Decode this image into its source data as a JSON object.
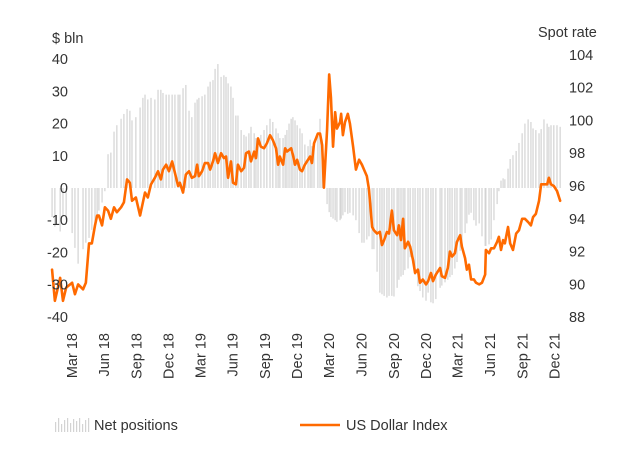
{
  "chart_data": {
    "type": "bar+line",
    "left_axis_unit": "$ bln",
    "right_axis_unit": "Spot rate",
    "left_ticks": [
      40,
      30,
      20,
      10,
      0,
      -10,
      -20,
      -30,
      -40
    ],
    "right_ticks": [
      104,
      102,
      100,
      98,
      96,
      94,
      92,
      90,
      88
    ],
    "ylim_left": [
      -40,
      40
    ],
    "ylim_right": [
      88,
      104
    ],
    "grid": false,
    "legend_position": "bottom",
    "x_tick_labels": [
      {
        "label": "Mar 18",
        "date": "2018-03-01"
      },
      {
        "label": "Jun 18",
        "date": "2018-06-01"
      },
      {
        "label": "Sep 18",
        "date": "2018-09-01"
      },
      {
        "label": "Dec 18",
        "date": "2018-12-01"
      },
      {
        "label": "Mar 19",
        "date": "2019-03-01"
      },
      {
        "label": "Jun 19",
        "date": "2019-06-01"
      },
      {
        "label": "Sep 19",
        "date": "2019-09-01"
      },
      {
        "label": "Dec 19",
        "date": "2019-12-01"
      },
      {
        "label": "Mar 20",
        "date": "2020-03-01"
      },
      {
        "label": "Jun 20",
        "date": "2020-06-01"
      },
      {
        "label": "Sep 20",
        "date": "2020-09-01"
      },
      {
        "label": "Dec 20",
        "date": "2020-12-01"
      },
      {
        "label": "Mar 21",
        "date": "2021-03-01"
      },
      {
        "label": "Jun 21",
        "date": "2021-06-01"
      },
      {
        "label": "Sep 21",
        "date": "2021-09-01"
      },
      {
        "label": "Dec 21",
        "date": "2021-12-01"
      }
    ],
    "dates": [
      "2018-01-04",
      "2018-01-12",
      "2018-01-27",
      "2018-02-04",
      "2018-02-13",
      "2018-03-02",
      "2018-03-10",
      "2018-03-19",
      "2018-04-02",
      "2018-04-10",
      "2018-04-19",
      "2018-04-27",
      "2018-05-06",
      "2018-05-12",
      "2018-05-17",
      "2018-05-26",
      "2018-06-03",
      "2018-06-12",
      "2018-06-20",
      "2018-06-29",
      "2018-07-07",
      "2018-07-19",
      "2018-07-27",
      "2018-08-05",
      "2018-08-13",
      "2018-08-19",
      "2018-08-30",
      "2018-09-11",
      "2018-09-19",
      "2018-09-25",
      "2018-10-03",
      "2018-10-12",
      "2018-10-23",
      "2018-11-01",
      "2018-11-09",
      "2018-11-15",
      "2018-11-24",
      "2018-12-02",
      "2018-12-11",
      "2018-12-19",
      "2018-12-28",
      "2019-01-02",
      "2019-01-11",
      "2019-01-19",
      "2019-01-28",
      "2019-02-05",
      "2019-02-14",
      "2019-02-20",
      "2019-02-25",
      "2019-03-06",
      "2019-03-14",
      "2019-03-23",
      "2019-03-29",
      "2019-04-06",
      "2019-04-12",
      "2019-04-20",
      "2019-04-29",
      "2019-05-07",
      "2019-05-13",
      "2019-05-19",
      "2019-05-27",
      "2019-06-02",
      "2019-06-10",
      "2019-06-16",
      "2019-06-25",
      "2019-07-03",
      "2019-07-09",
      "2019-07-17",
      "2019-07-23",
      "2019-08-01",
      "2019-08-06",
      "2019-08-12",
      "2019-08-20",
      "2019-08-29",
      "2019-09-06",
      "2019-09-15",
      "2019-09-23",
      "2019-10-02",
      "2019-10-08",
      "2019-10-13",
      "2019-10-22",
      "2019-10-28",
      "2019-11-02",
      "2019-11-08",
      "2019-11-14",
      "2019-11-19",
      "2019-11-25",
      "2019-12-01",
      "2019-12-09",
      "2019-12-15",
      "2019-12-23",
      "2020-01-01",
      "2020-01-07",
      "2020-01-12",
      "2020-01-18",
      "2020-01-29",
      "2020-02-04",
      "2020-02-10",
      "2020-02-15",
      "2020-02-24",
      "2020-03-01",
      "2020-03-06",
      "2020-03-12",
      "2020-03-18",
      "2020-03-23",
      "2020-04-01",
      "2020-04-04",
      "2020-04-09",
      "2020-04-15",
      "2020-04-23",
      "2020-04-29",
      "2020-05-08",
      "2020-05-16",
      "2020-05-25",
      "2020-06-02",
      "2020-06-08",
      "2020-06-16",
      "2020-06-22",
      "2020-07-01",
      "2020-07-06",
      "2020-07-15",
      "2020-07-23",
      "2020-07-29",
      "2020-08-04",
      "2020-08-12",
      "2020-08-18",
      "2020-08-26",
      "2020-09-01",
      "2020-09-10",
      "2020-09-15",
      "2020-09-21",
      "2020-09-27",
      "2020-10-02",
      "2020-10-11",
      "2020-10-17",
      "2020-10-25",
      "2020-10-31",
      "2020-11-08",
      "2020-11-14",
      "2020-11-22",
      "2020-12-01",
      "2020-12-07",
      "2020-12-15",
      "2020-12-21",
      "2020-12-29",
      "2021-01-10",
      "2021-01-15",
      "2021-01-24",
      "2021-02-01",
      "2021-02-07",
      "2021-02-13",
      "2021-02-21",
      "2021-02-27",
      "2021-03-08",
      "2021-03-13",
      "2021-03-22",
      "2021-03-27",
      "2021-04-02",
      "2021-04-08",
      "2021-04-16",
      "2021-04-22",
      "2021-05-01",
      "2021-05-09",
      "2021-05-18",
      "2021-05-20",
      "2021-05-29",
      "2021-06-04",
      "2021-06-12",
      "2021-06-21",
      "2021-06-26",
      "2021-07-02",
      "2021-07-08",
      "2021-07-13",
      "2021-07-22",
      "2021-07-28",
      "2021-08-05",
      "2021-08-14",
      "2021-08-22",
      "2021-08-31",
      "2021-09-08",
      "2021-09-17",
      "2021-09-25",
      "2021-10-01",
      "2021-10-09",
      "2021-10-18",
      "2021-10-24",
      "2021-11-01",
      "2021-11-10",
      "2021-11-15",
      "2021-11-21",
      "2021-11-29",
      "2021-12-08",
      "2021-12-17"
    ],
    "series": [
      {
        "name": "Net positions",
        "type": "bar",
        "axis": "left",
        "color": "#d3d3d3",
        "values": [
          -9,
          -12,
          -13.5,
          -9,
          -10,
          -14,
          -18.6,
          -23.5,
          -19,
          -17,
          -15.5,
          -13,
          -11,
          -8.5,
          -7,
          -4.5,
          -1,
          10.5,
          11,
          17.5,
          19.5,
          21.5,
          23,
          24.5,
          24,
          21,
          22,
          25,
          28,
          29,
          27.5,
          28,
          27.5,
          30.5,
          30.5,
          29.5,
          29,
          29,
          29,
          29,
          29,
          29,
          31,
          32,
          24,
          22,
          26.5,
          27.5,
          28,
          28.5,
          29,
          31.5,
          33,
          33.5,
          37,
          38.5,
          34.5,
          35,
          34.5,
          32.5,
          31.5,
          28,
          22.5,
          22.5,
          18,
          16.5,
          16,
          17,
          19,
          17,
          15.5,
          15.3,
          16.5,
          18,
          19.5,
          21.5,
          20.5,
          18.5,
          17,
          15.5,
          15.5,
          16.5,
          18,
          20,
          21.5,
          22,
          21,
          19.5,
          18.5,
          17,
          13.5,
          13,
          15,
          13,
          12.5,
          17,
          21.5,
          15,
          5,
          -5,
          -7.5,
          -9,
          -9.5,
          -10,
          -10.5,
          -10,
          -9.5,
          -8.5,
          -7.5,
          -8,
          -7.7,
          -8.5,
          -10,
          -14,
          -17,
          -17,
          -16,
          -15,
          -19,
          -19,
          -26,
          -32.5,
          -33,
          -33.5,
          -34,
          -33.5,
          -33.5,
          -33.7,
          -31,
          -28.5,
          -27.5,
          -27,
          -25.5,
          -25,
          -21.5,
          -23.5,
          -27,
          -30.5,
          -32,
          -34,
          -35,
          -32.5,
          -35.5,
          -35.8,
          -34.5,
          -31,
          -30.3,
          -29.3,
          -28.5,
          -27.7,
          -27,
          -25,
          -23,
          -19.5,
          -17,
          -14,
          -11,
          -8.3,
          -7.7,
          -10,
          -11.7,
          -11,
          -15,
          -18,
          -18,
          -17.5,
          -16,
          -10,
          -5,
          -1,
          2.3,
          3,
          2.7,
          6,
          9,
          10.2,
          11.5,
          14,
          17,
          20,
          21.3,
          20.5,
          18.5,
          18,
          17,
          18.3,
          21.3,
          20,
          19,
          19.5,
          19.5,
          19.5,
          19
        ]
      },
      {
        "name": "US Dollar Index",
        "type": "line",
        "axis": "right",
        "color": "#ff6a00",
        "values": [
          90.9,
          89.0,
          90.4,
          89.0,
          89.8,
          90.1,
          89.4,
          90.0,
          89.7,
          90.1,
          92.5,
          92.5,
          93.6,
          94.2,
          94.2,
          93.6,
          94.7,
          94.5,
          94.0,
          94.7,
          94.4,
          94.7,
          95.0,
          96.4,
          96.2,
          95.1,
          95.3,
          94.2,
          95.0,
          95.6,
          95.3,
          96.1,
          96.5,
          96.9,
          96.4,
          97.0,
          97.3,
          96.9,
          97.5,
          96.8,
          96.0,
          96.2,
          95.6,
          96.7,
          96.9,
          96.5,
          96.6,
          97.3,
          96.6,
          96.9,
          97.4,
          97.4,
          97.0,
          97.5,
          98.0,
          97.4,
          98.0,
          97.7,
          97.8,
          96.5,
          97.5,
          96.2,
          96.1,
          97.3,
          96.9,
          97.1,
          98.0,
          98.1,
          97.5,
          98.1,
          97.7,
          98.9,
          98.4,
          98.3,
          98.6,
          99.1,
          98.8,
          98.3,
          97.3,
          97.8,
          97.3,
          98.3,
          98.1,
          98.2,
          98.3,
          97.9,
          97.3,
          97.6,
          97.0,
          96.9,
          97.3,
          97.6,
          97.8,
          97.4,
          98.6,
          99.2,
          99.2,
          98.5,
          95.9,
          99.4,
          102.8,
          101.4,
          98.4,
          100.5,
          99.5,
          99.9,
          100.4,
          99.1,
          99.9,
          100.4,
          99.8,
          98.4,
          97.0,
          97.6,
          97.3,
          97.0,
          96.6,
          95.8,
          93.5,
          93.3,
          93.1,
          93.2,
          92.4,
          92.7,
          93.2,
          93.1,
          94.5,
          93.3,
          93.0,
          93.6,
          92.7,
          94.0,
          92.2,
          92.6,
          92.3,
          91.5,
          90.7,
          90.9,
          90.1,
          90.3,
          90.0,
          90.2,
          90.7,
          90.2,
          90.6,
          91.0,
          90.5,
          90.4,
          91.0,
          92.0,
          91.7,
          91.9,
          92.6,
          93.0,
          92.3,
          91.6,
          90.9,
          91.2,
          90.3,
          90.3,
          90.1,
          90.0,
          90.1,
          90.6,
          92.1,
          91.9,
          92.2,
          92.2,
          92.6,
          92.9,
          92.1,
          92.7,
          92.5,
          93.5,
          92.5,
          92.1,
          93.1,
          93.3,
          94.0,
          94.0,
          93.8,
          93.6,
          94.1,
          94.3,
          95.1,
          96.1,
          96.1,
          96.1,
          96.5,
          96.1,
          96.0,
          95.7,
          95.1
        ]
      }
    ]
  }
}
